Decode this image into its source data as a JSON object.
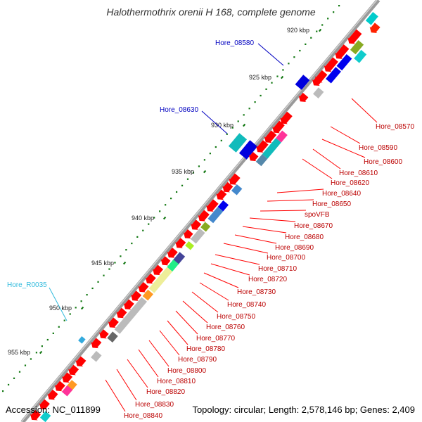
{
  "header": {
    "title": "Halothermothrix orenii H 168, complete genome"
  },
  "footer": {
    "accession": "Accession: NC_011899",
    "summary": "Topology: circular; Length: 2,578,146 bp; Genes: 2,409"
  },
  "scale_labels": [
    "920 kbp",
    "925 kbp",
    "930 kbp",
    "935 kbp",
    "940 kbp",
    "945 kbp",
    "950 kbp",
    "955 kbp"
  ],
  "callouts_outer": [
    {
      "label": "Hore_08580",
      "color": "#0000c0"
    },
    {
      "label": "Hore_08630",
      "color": "#0000c0"
    },
    {
      "label": "Hore_R0035",
      "color": "#33bbdd"
    }
  ],
  "callouts_inner": [
    "Hore_08570",
    "Hore_08590",
    "Hore_08600",
    "Hore_08610",
    "Hore_08620",
    "Hore_08640",
    "Hore_08650",
    "spoVFB",
    "Hore_08670",
    "Hore_08680",
    "Hore_08690",
    "Hore_08700",
    "Hore_08710",
    "Hore_08720",
    "Hore_08730",
    "Hore_08740",
    "Hore_08750",
    "Hore_08760",
    "Hore_08770",
    "Hore_08780",
    "Hore_08790",
    "Hore_08800",
    "Hore_08810",
    "Hore_08820",
    "Hore_08830",
    "Hore_08840"
  ],
  "colors": {
    "backbone": "#808080",
    "gene_default": "#ff0000",
    "callout_line": "#ff0000",
    "tick": "#117711"
  }
}
